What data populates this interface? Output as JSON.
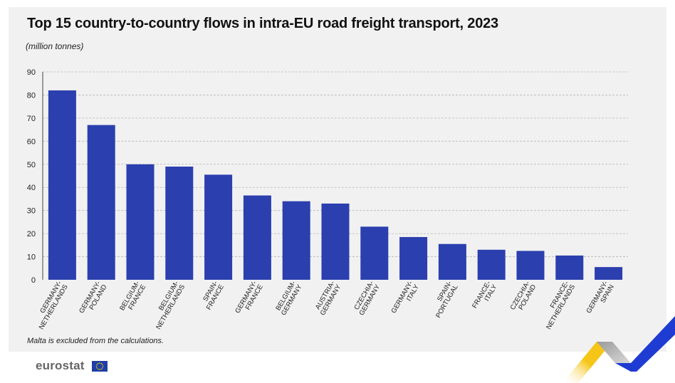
{
  "header": {
    "title": "Top 15 country-to-country flows in intra-EU road freight transport, 2023",
    "subtitle": "(million tonnes)"
  },
  "footer": {
    "note": "Malta is excluded from the calculations.",
    "brand": "eurostat"
  },
  "colors": {
    "bar": "#2b3fae",
    "grid": "#b8b8b8",
    "accent_yellow": "#f5c518",
    "accent_blue": "#1e3bd2"
  },
  "chart_data": {
    "type": "bar",
    "title": "Top 15 country-to-country flows in intra-EU road freight transport, 2023",
    "ylabel": "(million tonnes)",
    "ylim": [
      0,
      90
    ],
    "yticks": [
      0,
      10,
      20,
      30,
      40,
      50,
      60,
      70,
      80,
      90
    ],
    "grid": true,
    "categories": [
      [
        "GERMANY-",
        "NETHERLANDS"
      ],
      [
        "GERMANY-",
        "POLAND"
      ],
      [
        "BELGIUM-",
        "FRANCE"
      ],
      [
        "BELGIUM-",
        "NETHERLANDS"
      ],
      [
        "SPAIN-",
        "FRANCE"
      ],
      [
        "GERMANY-",
        "FRANCE"
      ],
      [
        "BELGIUM-",
        "GERMANY"
      ],
      [
        "AUSTRIA-",
        "GERMANY"
      ],
      [
        "CZECHIA-",
        "GERMANY"
      ],
      [
        "GERMANY-",
        "ITALY"
      ],
      [
        "SPAIN-",
        "PORTUGAL"
      ],
      [
        "FRANCE-",
        "ITALY"
      ],
      [
        "CZECHIA-",
        "POLAND"
      ],
      [
        "FRANCE-",
        "NETHERLANDS"
      ],
      [
        "GERMANY-",
        "SPAIN"
      ]
    ],
    "values": [
      82,
      67,
      50,
      49,
      45.5,
      36.5,
      34,
      33,
      23,
      18.5,
      15.5,
      13,
      12.5,
      10.5,
      5.5
    ]
  }
}
